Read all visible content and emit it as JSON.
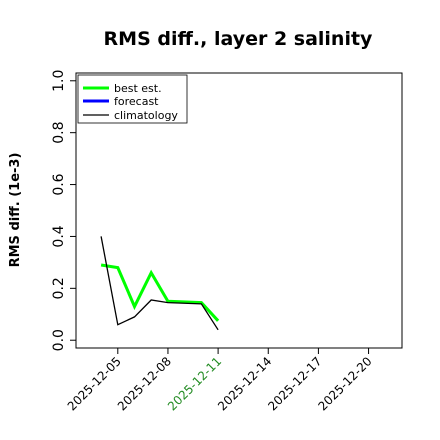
{
  "chart_data": {
    "type": "line",
    "title": "RMS diff., layer 2 salinity",
    "xlabel": "",
    "ylabel": "RMS diff. (1e-3)",
    "ylim": [
      -0.03,
      1.03
    ],
    "yticks": [
      0.0,
      0.2,
      0.4,
      0.6,
      0.8,
      1.0
    ],
    "ytick_labels": [
      "0.0",
      "0.2",
      "0.4",
      "0.6",
      "0.8",
      "1.0"
    ],
    "xlim": [
      "2025-12-02T12:00",
      "2025-12-22"
    ],
    "xticks": [
      "2025-12-05",
      "2025-12-08",
      "2025-12-11",
      "2025-12-14",
      "2025-12-17",
      "2025-12-20"
    ],
    "xtick_labels": [
      "2025-12-05",
      "2025-12-08",
      "2025-12-11",
      "2025-12-14",
      "2025-12-17",
      "2025-12-20"
    ],
    "xtick_colors": [
      "#000000",
      "#000000",
      "#228b22",
      "#000000",
      "#000000",
      "#000000"
    ],
    "legend_position": "top-left",
    "grid": false,
    "series": [
      {
        "name": "best est.",
        "color": "#00ff00",
        "width": 3,
        "x": [
          "2025-12-04",
          "2025-12-05",
          "2025-12-06",
          "2025-12-07",
          "2025-12-08",
          "2025-12-10",
          "2025-12-11"
        ],
        "y": [
          0.29,
          0.28,
          0.13,
          0.26,
          0.15,
          0.145,
          0.075
        ]
      },
      {
        "name": "forecast",
        "color": "#0000ff",
        "width": 3,
        "x": [],
        "y": []
      },
      {
        "name": "climatology",
        "color": "#000000",
        "width": 1.3,
        "x": [
          "2025-12-04",
          "2025-12-05",
          "2025-12-06",
          "2025-12-07",
          "2025-12-08",
          "2025-12-10",
          "2025-12-11"
        ],
        "y": [
          0.4,
          0.06,
          0.09,
          0.155,
          0.145,
          0.14,
          0.04
        ]
      }
    ]
  }
}
